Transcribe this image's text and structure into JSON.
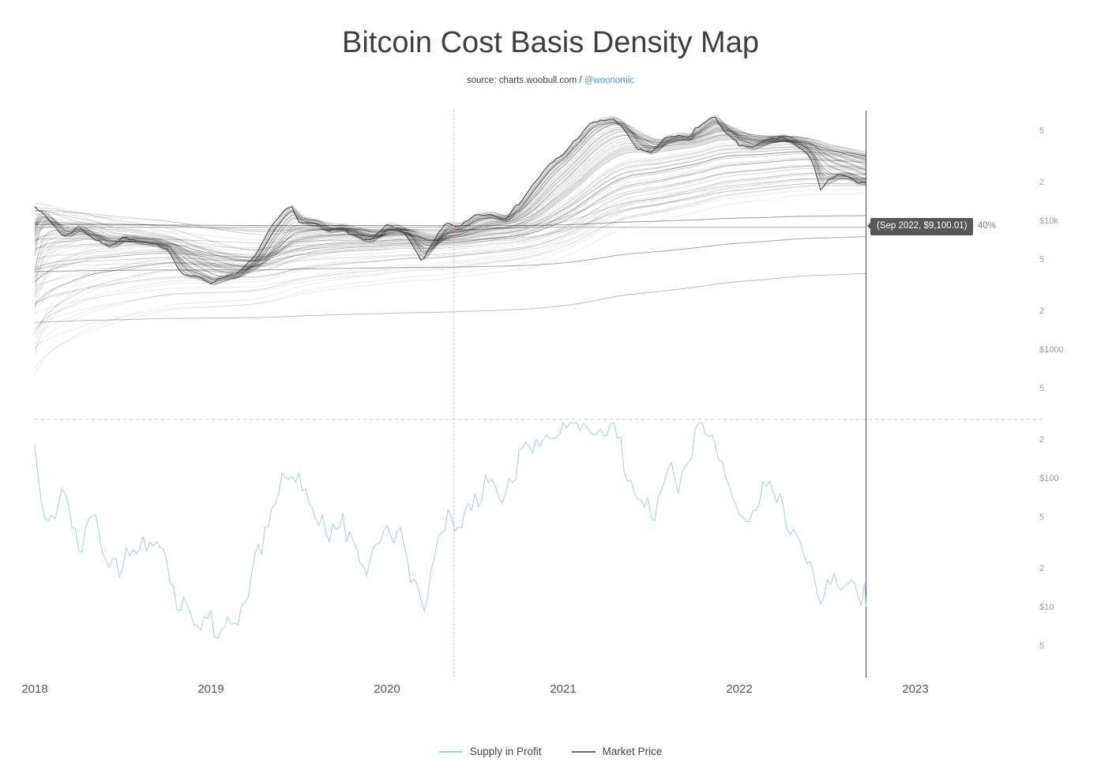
{
  "header": {
    "title": "Bitcoin Cost Basis Density Map",
    "source_prefix": "source: charts.woobull.com / ",
    "source_link": "@woonomic"
  },
  "colors": {
    "accent_link": "#4a90d2",
    "supply_line": "#a5cbe5",
    "market_price_line": "#4a4a4a",
    "density_line": "#000000",
    "halving_marker": "#e49c9c",
    "crosshair": "#444444",
    "crosshair_horizontal": "#aaaaaa",
    "separator": "#c8c8c8",
    "axis_label": "#999999",
    "x_axis_label": "#555555",
    "tooltip_bg": "#57575a",
    "tooltip_text": "#ffffff"
  },
  "legend": [
    {
      "label": "Supply in Profit",
      "color": "#a5cbe5"
    },
    {
      "label": "Market Price",
      "color": "#6b6b6b"
    }
  ],
  "chart_data": {
    "type": "line",
    "title": "Bitcoin Cost Basis Density Map",
    "x_range": [
      2018,
      2023.75
    ],
    "y_scale": "log",
    "grid": "off",
    "legend_position": "bottom",
    "x_ticks": [
      {
        "label": "2018",
        "value": 2018
      },
      {
        "label": "2019",
        "value": 2019
      },
      {
        "label": "2020",
        "value": 2020
      },
      {
        "label": "2021",
        "value": 2021
      },
      {
        "label": "2022",
        "value": 2022
      },
      {
        "label": "2023",
        "value": 2023
      }
    ],
    "y_ticks": [
      {
        "label": "5",
        "value": 50000
      },
      {
        "label": "2",
        "value": 20000
      },
      {
        "label": "$10k",
        "value": 10000
      },
      {
        "label": "5",
        "value": 5000
      },
      {
        "label": "2",
        "value": 2000
      },
      {
        "label": "$1000",
        "value": 1000
      },
      {
        "label": "5",
        "value": 500
      },
      {
        "label": "2",
        "value": 200
      },
      {
        "label": "$100",
        "value": 100
      },
      {
        "label": "5",
        "value": 50
      },
      {
        "label": "2",
        "value": 20
      },
      {
        "label": "$10",
        "value": 10
      },
      {
        "label": "5",
        "value": 5
      }
    ],
    "halving_line_x": 2020.38,
    "crosshair": {
      "x": 2022.72,
      "price": 9100.01,
      "label": "(Sep 2022, $9,100.01)",
      "supply_pct_label": "40%"
    },
    "series": [
      {
        "name": "Market Price",
        "unit": "USD",
        "color": "#4a4a4a",
        "points": [
          [
            2018.0,
            13500
          ],
          [
            2018.083,
            10200
          ],
          [
            2018.167,
            7600
          ],
          [
            2018.25,
            9200
          ],
          [
            2018.333,
            7500
          ],
          [
            2018.417,
            6400
          ],
          [
            2018.5,
            7700
          ],
          [
            2018.583,
            7000
          ],
          [
            2018.667,
            6600
          ],
          [
            2018.75,
            6300
          ],
          [
            2018.833,
            4000
          ],
          [
            2018.917,
            3700
          ],
          [
            2019.0,
            3400
          ],
          [
            2019.083,
            3800
          ],
          [
            2019.167,
            4100
          ],
          [
            2019.25,
            5300
          ],
          [
            2019.333,
            8500
          ],
          [
            2019.417,
            11800
          ],
          [
            2019.458,
            13000
          ],
          [
            2019.5,
            10000
          ],
          [
            2019.583,
            9600
          ],
          [
            2019.667,
            8300
          ],
          [
            2019.75,
            9200
          ],
          [
            2019.833,
            7500
          ],
          [
            2019.917,
            7200
          ],
          [
            2020.0,
            9300
          ],
          [
            2020.083,
            8500
          ],
          [
            2020.2,
            4900
          ],
          [
            2020.25,
            6400
          ],
          [
            2020.333,
            9500
          ],
          [
            2020.417,
            9100
          ],
          [
            2020.5,
            11300
          ],
          [
            2020.583,
            11600
          ],
          [
            2020.667,
            10800
          ],
          [
            2020.75,
            13800
          ],
          [
            2020.833,
            19700
          ],
          [
            2020.917,
            27000
          ],
          [
            2021.0,
            33100
          ],
          [
            2021.083,
            45200
          ],
          [
            2021.167,
            58800
          ],
          [
            2021.28,
            63500
          ],
          [
            2021.333,
            54000
          ],
          [
            2021.417,
            37300
          ],
          [
            2021.5,
            33500
          ],
          [
            2021.583,
            44500
          ],
          [
            2021.667,
            47100
          ],
          [
            2021.72,
            43800
          ],
          [
            2021.75,
            54000
          ],
          [
            2021.833,
            61300
          ],
          [
            2021.86,
            67500
          ],
          [
            2021.917,
            49000
          ],
          [
            2022.0,
            38500
          ],
          [
            2022.083,
            38000
          ],
          [
            2022.167,
            43200
          ],
          [
            2022.25,
            45500
          ],
          [
            2022.333,
            38600
          ],
          [
            2022.417,
            29500
          ],
          [
            2022.46,
            17800
          ],
          [
            2022.5,
            20500
          ],
          [
            2022.583,
            23300
          ],
          [
            2022.667,
            20000
          ],
          [
            2022.72,
            19500
          ]
        ]
      },
      {
        "name": "Supply in Profit",
        "unit": "%",
        "color": "#a5cbe5",
        "points": [
          [
            2018.0,
            93
          ],
          [
            2018.083,
            68
          ],
          [
            2018.167,
            80
          ],
          [
            2018.25,
            62
          ],
          [
            2018.333,
            76
          ],
          [
            2018.417,
            60
          ],
          [
            2018.5,
            55
          ],
          [
            2018.583,
            65
          ],
          [
            2018.667,
            58
          ],
          [
            2018.75,
            55
          ],
          [
            2018.833,
            40
          ],
          [
            2018.917,
            34
          ],
          [
            2019.0,
            36
          ],
          [
            2019.083,
            28
          ],
          [
            2019.167,
            40
          ],
          [
            2019.25,
            52
          ],
          [
            2019.333,
            70
          ],
          [
            2019.417,
            82
          ],
          [
            2019.5,
            78
          ],
          [
            2019.583,
            72
          ],
          [
            2019.667,
            60
          ],
          [
            2019.75,
            68
          ],
          [
            2019.833,
            55
          ],
          [
            2019.917,
            53
          ],
          [
            2020.0,
            66
          ],
          [
            2020.083,
            70
          ],
          [
            2020.2,
            34
          ],
          [
            2020.25,
            56
          ],
          [
            2020.333,
            66
          ],
          [
            2020.417,
            63
          ],
          [
            2020.5,
            74
          ],
          [
            2020.583,
            82
          ],
          [
            2020.667,
            76
          ],
          [
            2020.75,
            88
          ],
          [
            2020.833,
            95
          ],
          [
            2020.917,
            98
          ],
          [
            2021.0,
            97
          ],
          [
            2021.083,
            96
          ],
          [
            2021.167,
            99
          ],
          [
            2021.28,
            98
          ],
          [
            2021.417,
            76
          ],
          [
            2021.5,
            70
          ],
          [
            2021.583,
            84
          ],
          [
            2021.667,
            80
          ],
          [
            2021.75,
            93
          ],
          [
            2021.833,
            97
          ],
          [
            2021.917,
            84
          ],
          [
            2022.0,
            72
          ],
          [
            2022.083,
            77
          ],
          [
            2022.167,
            80
          ],
          [
            2022.25,
            72
          ],
          [
            2022.333,
            60
          ],
          [
            2022.417,
            48
          ],
          [
            2022.46,
            42
          ],
          [
            2022.5,
            47
          ],
          [
            2022.583,
            50
          ],
          [
            2022.667,
            45
          ],
          [
            2022.72,
            44
          ]
        ]
      }
    ],
    "density_map": {
      "description": "grey cost-basis density lines fanned across price panel",
      "count": 110,
      "seed": 42,
      "alpha_min": 0.004,
      "alpha_max": 0.7,
      "start_min": 420,
      "start_max": 13800,
      "start_bias": 0.62,
      "opacity": 0.1,
      "highlight_lines": [
        {
          "start": 9500,
          "alpha": 0.0006,
          "opacity": 0.4
        },
        {
          "start": 4100,
          "alpha": 0.0009,
          "opacity": 0.35
        },
        {
          "start": 1650,
          "alpha": 0.0005,
          "opacity": 0.28
        }
      ]
    }
  }
}
